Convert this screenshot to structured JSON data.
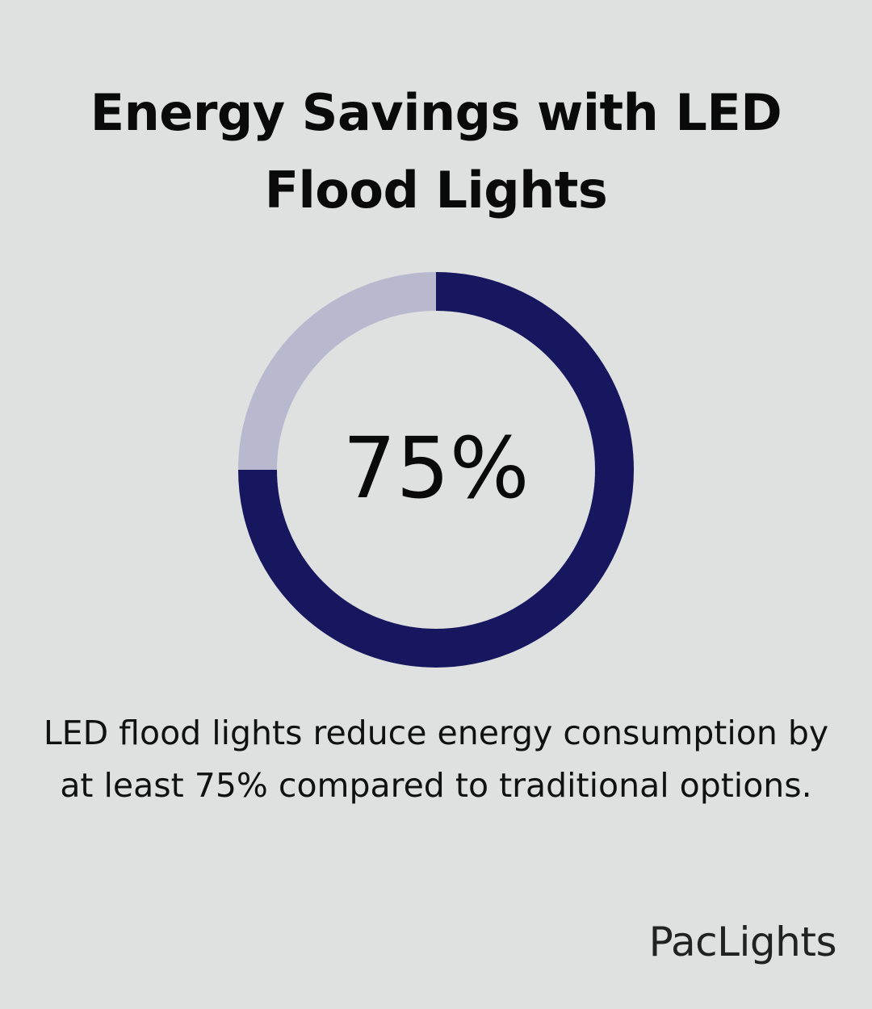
{
  "infographic": {
    "title": "Energy Savings with LED Flood Lights",
    "caption": "LED flood lights reduce energy consumption by at least 75% compared to traditional options.",
    "brand": "PacLights"
  },
  "chart_data": {
    "type": "pie",
    "center_label": "75%",
    "series": [
      {
        "value": 75,
        "color": "#16175e"
      },
      {
        "value": 25,
        "color": "#b8b9cf"
      }
    ],
    "colors": {
      "background": "#dfe1e1",
      "filled": "#16175e",
      "remaining": "#b8b9cf"
    }
  }
}
